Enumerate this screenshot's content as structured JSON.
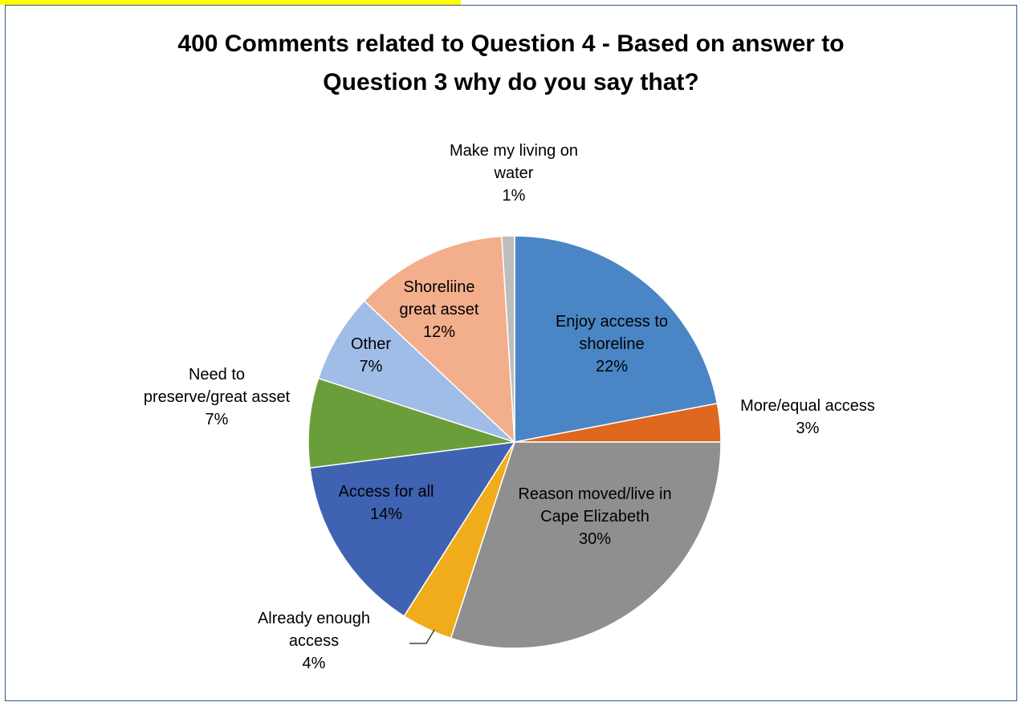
{
  "chart_data": {
    "type": "pie",
    "title": "400 Comments related to Question 4 - Based on answer to Question 3 why do you say that?",
    "title_lines": [
      "400 Comments related to Question 4 - Based on answer to",
      "Question 3 why do you say that?"
    ],
    "data_labels_shown": "category name and percentage",
    "slices": [
      {
        "label": "Enjoy access to shoreline",
        "label_lines": [
          "Enjoy access to",
          "shoreline"
        ],
        "percent_label": "22%",
        "value": 22,
        "color": "#4a86c5"
      },
      {
        "label": "More/equal access",
        "label_lines": [
          "More/equal access"
        ],
        "percent_label": "3%",
        "value": 3,
        "color": "#e0671f"
      },
      {
        "label": "Reason moved/live in Cape Elizabeth",
        "label_lines": [
          "Reason moved/live in",
          "Cape Elizabeth"
        ],
        "percent_label": "30%",
        "value": 30,
        "color": "#8f8f8f"
      },
      {
        "label": "Already enough access",
        "label_lines": [
          "Already enough",
          "access"
        ],
        "percent_label": "4%",
        "value": 4,
        "color": "#f0ac1a"
      },
      {
        "label": "Access for all",
        "label_lines": [
          "Access for all"
        ],
        "percent_label": "14%",
        "value": 14,
        "color": "#3f62b2"
      },
      {
        "label": "Need to preserve/great asset",
        "label_lines": [
          "Need to",
          "preserve/great asset"
        ],
        "percent_label": "7%",
        "value": 7,
        "color": "#6a9e3a"
      },
      {
        "label": "Other",
        "label_lines": [
          "Other"
        ],
        "percent_label": "7%",
        "value": 7,
        "color": "#9fbde6"
      },
      {
        "label": "Shoreliine great asset",
        "label_lines": [
          "Shoreliine",
          "great asset"
        ],
        "percent_label": "12%",
        "value": 12,
        "color": "#f3ae8c"
      },
      {
        "label": "Make my living on water",
        "label_lines": [
          "Make my living on",
          "water"
        ],
        "percent_label": "1%",
        "value": 1,
        "color": "#bdbdbd"
      }
    ]
  }
}
